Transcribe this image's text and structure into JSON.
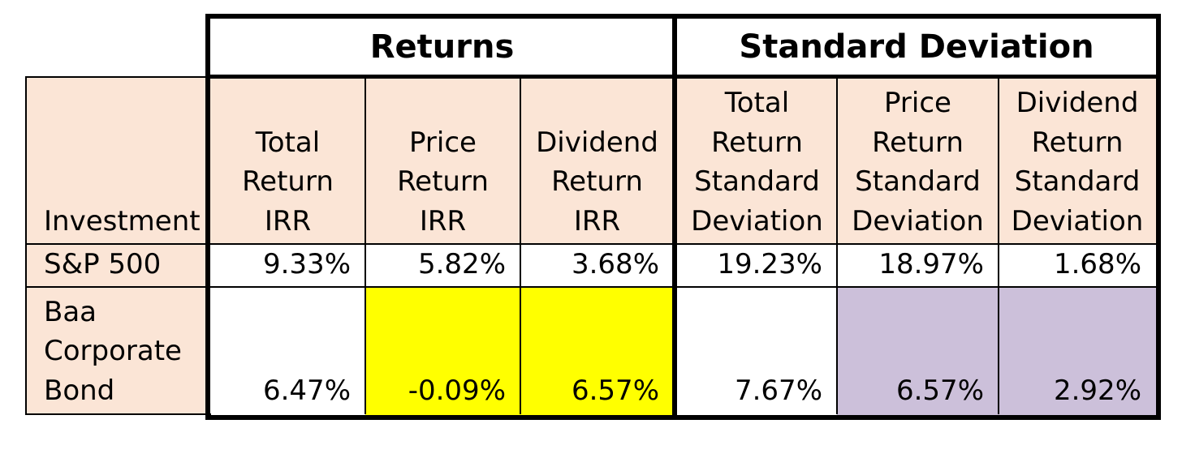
{
  "groups": {
    "returns": "Returns",
    "stdev": "Standard Deviation"
  },
  "headers": {
    "investment": [
      "Investment"
    ],
    "total_return_irr": [
      "Total",
      "Return",
      "IRR"
    ],
    "price_return_irr": [
      "Price",
      "Return",
      "IRR"
    ],
    "dividend_return_irr": [
      "Dividend",
      "Return",
      "IRR"
    ],
    "total_return_sd": [
      "Total",
      "Return",
      "Standard",
      "Deviation"
    ],
    "price_return_sd": [
      "Price",
      "Return",
      "Standard",
      "Deviation"
    ],
    "dividend_return_sd": [
      "Dividend",
      "Return",
      "Standard",
      "Deviation"
    ]
  },
  "rows": [
    {
      "name": [
        "S&P 500"
      ],
      "values": [
        "9.33%",
        "5.82%",
        "3.68%",
        "19.23%",
        "18.97%",
        "1.68%"
      ]
    },
    {
      "name": [
        "Baa",
        "Corporate",
        "Bond"
      ],
      "values": [
        "6.47%",
        "-0.09%",
        "6.57%",
        "7.67%",
        "6.57%",
        "2.92%"
      ]
    }
  ],
  "colors": {
    "header_fill": "#fbe5d6",
    "highlight_yellow": "#ffff00",
    "highlight_lilac": "#ccc0da"
  }
}
